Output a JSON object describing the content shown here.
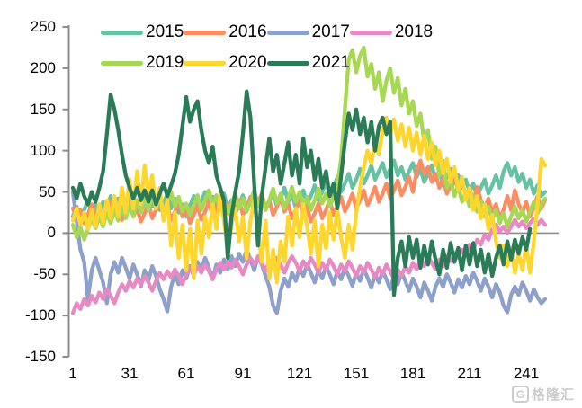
{
  "watermark": {
    "logo_text": "G",
    "brand_text": "格隆汇"
  },
  "chart_data": {
    "type": "line",
    "title": "",
    "xlabel": "",
    "ylabel": "",
    "grid": "zero-line-only",
    "legend_position": "top",
    "x_axis": {
      "ticks": [
        1,
        31,
        61,
        91,
        121,
        151,
        181,
        211,
        241
      ],
      "min": 1,
      "max": 257,
      "x_start": 1,
      "x_step": 2
    },
    "y_axis": {
      "ticks": [
        250,
        200,
        150,
        100,
        50,
        0,
        -50,
        -100,
        -150
      ],
      "min": -150,
      "max": 250
    },
    "axis_color": "#8c8c8c",
    "series": [
      {
        "name": "2015",
        "color": "#66C2A5",
        "values": [
          20,
          32,
          18,
          28,
          40,
          25,
          35,
          22,
          38,
          28,
          45,
          30,
          42,
          25,
          35,
          48,
          30,
          40,
          26,
          38,
          50,
          32,
          44,
          28,
          36,
          48,
          30,
          42,
          25,
          35,
          20,
          33,
          45,
          28,
          38,
          50,
          33,
          44,
          27,
          37,
          48,
          30,
          40,
          24,
          34,
          46,
          28,
          38,
          52,
          35,
          45,
          28,
          38,
          50,
          32,
          42,
          55,
          38,
          48,
          30,
          40,
          52,
          35,
          45,
          58,
          40,
          50,
          62,
          45,
          55,
          68,
          50,
          60,
          72,
          55,
          65,
          78,
          60,
          70,
          82,
          65,
          75,
          85,
          68,
          78,
          88,
          70,
          80,
          65,
          75,
          85,
          68,
          78,
          62,
          72,
          82,
          65,
          75,
          58,
          68,
          78,
          60,
          70,
          55,
          65,
          50,
          60,
          45,
          55,
          65,
          48,
          58,
          70,
          55,
          75,
          85,
          70,
          80,
          62,
          72,
          55,
          65,
          48,
          58,
          45,
          50
        ]
      },
      {
        "name": "2016",
        "color": "#FC8D62",
        "values": [
          30,
          18,
          28,
          12,
          22,
          35,
          20,
          30,
          15,
          25,
          38,
          22,
          32,
          16,
          26,
          38,
          20,
          30,
          14,
          24,
          36,
          18,
          28,
          40,
          24,
          34,
          16,
          26,
          38,
          20,
          30,
          12,
          22,
          34,
          16,
          26,
          38,
          20,
          30,
          42,
          25,
          35,
          18,
          28,
          40,
          22,
          32,
          44,
          26,
          36,
          48,
          30,
          40,
          22,
          32,
          44,
          26,
          36,
          18,
          28,
          40,
          22,
          32,
          14,
          24,
          36,
          18,
          28,
          40,
          22,
          32,
          44,
          26,
          36,
          48,
          30,
          40,
          52,
          34,
          44,
          56,
          38,
          48,
          60,
          42,
          52,
          64,
          46,
          56,
          68,
          50,
          75,
          88,
          72,
          80,
          62,
          72,
          55,
          65,
          48,
          58,
          70,
          52,
          62,
          45,
          55,
          38,
          56,
          40,
          30,
          42,
          25,
          35,
          18,
          28,
          45,
          28,
          52,
          35,
          25,
          38,
          20,
          32,
          45,
          30,
          40
        ]
      },
      {
        "name": "2017",
        "color": "#8DA0CB",
        "values": [
          50,
          15,
          -20,
          -35,
          -80,
          -45,
          -30,
          -45,
          -60,
          -85,
          -50,
          -35,
          -48,
          -30,
          -42,
          -55,
          -38,
          -50,
          -65,
          -45,
          -58,
          -40,
          -52,
          -68,
          -80,
          -95,
          -65,
          -50,
          -62,
          -45,
          -55,
          -40,
          -52,
          -35,
          -45,
          -30,
          -42,
          -55,
          -38,
          -48,
          -32,
          -44,
          -28,
          -40,
          -25,
          -35,
          -20,
          -32,
          -45,
          -28,
          -38,
          -52,
          -65,
          -88,
          -97,
          -70,
          -55,
          -65,
          -48,
          -58,
          -42,
          -52,
          -38,
          -48,
          -60,
          -45,
          -55,
          -40,
          -50,
          -62,
          -46,
          -56,
          -42,
          -52,
          -64,
          -48,
          -58,
          -44,
          -54,
          -66,
          -50,
          -60,
          -46,
          -56,
          -68,
          -52,
          -62,
          -48,
          -58,
          -70,
          -55,
          -65,
          -78,
          -60,
          -70,
          -82,
          -65,
          -55,
          -65,
          -50,
          -60,
          -72,
          -56,
          -66,
          -52,
          -62,
          -48,
          -58,
          -70,
          -55,
          -65,
          -78,
          -62,
          -72,
          -88,
          -96,
          -75,
          -65,
          -75,
          -60,
          -70,
          -82,
          -68,
          -78,
          -85,
          -80
        ]
      },
      {
        "name": "2018",
        "color": "#E78AC3",
        "values": [
          -97,
          -85,
          -92,
          -80,
          -88,
          -76,
          -84,
          -72,
          -80,
          -68,
          -76,
          -85,
          -72,
          -62,
          -70,
          -58,
          -66,
          -55,
          -63,
          -52,
          -60,
          -70,
          -58,
          -48,
          -56,
          -46,
          -54,
          -44,
          -52,
          -62,
          -50,
          -42,
          -50,
          -40,
          -48,
          -38,
          -46,
          -56,
          -44,
          -36,
          -44,
          -34,
          -42,
          -32,
          -40,
          -50,
          -38,
          -30,
          -38,
          -28,
          -36,
          -46,
          -34,
          -42,
          -30,
          -38,
          -48,
          -36,
          -28,
          -36,
          -46,
          -34,
          -42,
          -30,
          -38,
          -48,
          -36,
          -44,
          -32,
          -40,
          -50,
          -38,
          -46,
          -34,
          -42,
          -52,
          -40,
          -48,
          -36,
          -44,
          -54,
          -42,
          -50,
          -38,
          -46,
          -56,
          -44,
          -52,
          -40,
          -48,
          -36,
          -44,
          -32,
          -40,
          -28,
          -36,
          -44,
          -32,
          -40,
          -28,
          -34,
          -24,
          -30,
          -20,
          -26,
          -14,
          -20,
          -8,
          -14,
          -2,
          -8,
          4,
          10,
          2,
          8,
          0,
          8,
          16,
          8,
          14,
          6,
          12,
          18,
          10,
          16,
          10
        ]
      },
      {
        "name": "2019",
        "color": "#A6D854",
        "values": [
          10,
          -5,
          8,
          -8,
          5,
          18,
          6,
          20,
          8,
          25,
          12,
          28,
          15,
          32,
          18,
          35,
          20,
          40,
          25,
          45,
          28,
          48,
          30,
          42,
          25,
          38,
          50,
          32,
          44,
          26,
          36,
          22,
          34,
          46,
          28,
          40,
          52,
          34,
          46,
          28,
          40,
          24,
          36,
          48,
          30,
          42,
          26,
          38,
          50,
          32,
          44,
          28,
          40,
          54,
          36,
          48,
          30,
          42,
          56,
          38,
          50,
          32,
          44,
          28,
          40,
          54,
          36,
          48,
          32,
          44,
          58,
          90,
          150,
          210,
          222,
          195,
          215,
          225,
          190,
          205,
          175,
          195,
          160,
          185,
          200,
          170,
          188,
          155,
          175,
          145,
          160,
          130,
          145,
          110,
          125,
          90,
          105,
          70,
          88,
          55,
          65,
          45,
          58,
          38,
          50,
          32,
          45,
          26,
          38,
          20,
          32,
          16,
          28,
          12,
          24,
          8,
          20,
          32,
          18,
          28,
          14,
          26,
          38,
          24,
          34,
          42
        ]
      },
      {
        "name": "2020",
        "color": "#FFD62E",
        "values": [
          15,
          30,
          10,
          25,
          5,
          28,
          8,
          35,
          12,
          40,
          18,
          45,
          20,
          55,
          25,
          65,
          30,
          75,
          35,
          82,
          45,
          70,
          30,
          55,
          15,
          40,
          -15,
          25,
          -30,
          10,
          -45,
          5,
          -55,
          15,
          -25,
          20,
          -5,
          35,
          5,
          45,
          15,
          -20,
          10,
          30,
          -10,
          20,
          -30,
          15,
          40,
          5,
          -35,
          15,
          -55,
          -20,
          -60,
          -10,
          -35,
          20,
          -15,
          30,
          -5,
          35,
          8,
          -25,
          15,
          -40,
          10,
          -18,
          25,
          -8,
          28,
          -5,
          -30,
          10,
          -20,
          25,
          55,
          80,
          100,
          85,
          110,
          95,
          125,
          140,
          120,
          138,
          112,
          132,
          105,
          128,
          100,
          122,
          95,
          118,
          90,
          110,
          82,
          100,
          72,
          90,
          62,
          80,
          52,
          68,
          40,
          55,
          28,
          45,
          18,
          35,
          5,
          22,
          -10,
          -30,
          -15,
          -40,
          -18,
          -48,
          -25,
          -45,
          -15,
          -48,
          -10,
          35,
          90,
          82
        ]
      },
      {
        "name": "2021",
        "color": "#2A7B58",
        "values": [
          55,
          42,
          60,
          45,
          35,
          50,
          38,
          55,
          75,
          120,
          168,
          150,
          125,
          95,
          70,
          55,
          42,
          55,
          40,
          52,
          38,
          52,
          35,
          48,
          60,
          45,
          58,
          72,
          95,
          130,
          165,
          135,
          150,
          160,
          125,
          100,
          85,
          105,
          70,
          55,
          40,
          -30,
          20,
          50,
          75,
          120,
          172,
          140,
          60,
          -15,
          45,
          80,
          115,
          75,
          95,
          60,
          85,
          110,
          70,
          95,
          60,
          115,
          80,
          100,
          65,
          90,
          55,
          75,
          45,
          60,
          30,
          70,
          110,
          145,
          125,
          150,
          120,
          140,
          110,
          135,
          100,
          130,
          140,
          120,
          135,
          -75,
          -30,
          -10,
          -40,
          -5,
          -30,
          -8,
          -42,
          -15,
          -38,
          -10,
          -32,
          -50,
          -20,
          -42,
          -12,
          -35,
          -18,
          -45,
          -15,
          -38,
          -12,
          -40,
          -20,
          -48,
          -25,
          -52,
          -30,
          -15,
          -38,
          -10,
          -32,
          -8,
          -25,
          -5,
          -20,
          5,
          null,
          null,
          null,
          null
        ]
      }
    ]
  }
}
